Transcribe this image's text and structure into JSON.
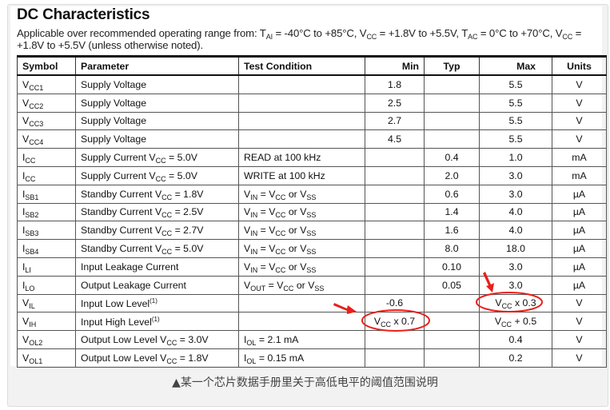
{
  "title": "DC Characteristics",
  "description": [
    {
      "t": "Applicable over recommended operating range from: T"
    },
    {
      "t": "AI",
      "s": 1
    },
    {
      "t": " = -40°C to +85°C, V"
    },
    {
      "t": "CC",
      "s": 1
    },
    {
      "t": " = +1.8V to +5.5V, T"
    },
    {
      "t": "AC",
      "s": 1
    },
    {
      "t": " = 0°C to +70°C, V"
    },
    {
      "t": "CC",
      "s": 1
    },
    {
      "t": " = +1.8V to +5.5V (unless otherwise noted)."
    }
  ],
  "headers": [
    "Symbol",
    "Parameter",
    "Test Condition",
    "Min",
    "Typ",
    "Max",
    "Units"
  ],
  "rows": [
    [
      [
        {
          "t": "V"
        },
        {
          "t": "CC1",
          "s": 1
        }
      ],
      [
        {
          "t": "Supply Voltage"
        }
      ],
      [],
      [
        {
          "t": "1.8"
        }
      ],
      [],
      [
        {
          "t": "5.5"
        }
      ],
      [
        {
          "t": "V"
        }
      ]
    ],
    [
      [
        {
          "t": "V"
        },
        {
          "t": "CC2",
          "s": 1
        }
      ],
      [
        {
          "t": "Supply Voltage"
        }
      ],
      [],
      [
        {
          "t": "2.5"
        }
      ],
      [],
      [
        {
          "t": "5.5"
        }
      ],
      [
        {
          "t": "V"
        }
      ]
    ],
    [
      [
        {
          "t": "V"
        },
        {
          "t": "CC3",
          "s": 1
        }
      ],
      [
        {
          "t": "Supply Voltage"
        }
      ],
      [],
      [
        {
          "t": "2.7"
        }
      ],
      [],
      [
        {
          "t": "5.5"
        }
      ],
      [
        {
          "t": "V"
        }
      ]
    ],
    [
      [
        {
          "t": "V"
        },
        {
          "t": "CC4",
          "s": 1
        }
      ],
      [
        {
          "t": "Supply Voltage"
        }
      ],
      [],
      [
        {
          "t": "4.5"
        }
      ],
      [],
      [
        {
          "t": "5.5"
        }
      ],
      [
        {
          "t": "V"
        }
      ]
    ],
    [
      [
        {
          "t": "I"
        },
        {
          "t": "CC",
          "s": 1
        }
      ],
      [
        {
          "t": "Supply Current V"
        },
        {
          "t": "CC",
          "s": 1
        },
        {
          "t": " = 5.0V"
        }
      ],
      [
        {
          "t": "READ at 100 kHz"
        }
      ],
      [],
      [
        {
          "t": "0.4"
        }
      ],
      [
        {
          "t": "1.0"
        }
      ],
      [
        {
          "t": "mA"
        }
      ]
    ],
    [
      [
        {
          "t": "I"
        },
        {
          "t": "CC",
          "s": 1
        }
      ],
      [
        {
          "t": "Supply Current V"
        },
        {
          "t": "CC",
          "s": 1
        },
        {
          "t": " = 5.0V"
        }
      ],
      [
        {
          "t": "WRITE at 100 kHz"
        }
      ],
      [],
      [
        {
          "t": "2.0"
        }
      ],
      [
        {
          "t": "3.0"
        }
      ],
      [
        {
          "t": "mA"
        }
      ]
    ],
    [
      [
        {
          "t": "I"
        },
        {
          "t": "SB1",
          "s": 1
        }
      ],
      [
        {
          "t": "Standby Current V"
        },
        {
          "t": "CC",
          "s": 1
        },
        {
          "t": " = 1.8V"
        }
      ],
      [
        {
          "t": "V"
        },
        {
          "t": "IN",
          "s": 1
        },
        {
          "t": " = V"
        },
        {
          "t": "CC",
          "s": 1
        },
        {
          "t": " or V"
        },
        {
          "t": "SS",
          "s": 1
        }
      ],
      [],
      [
        {
          "t": "0.6"
        }
      ],
      [
        {
          "t": "3.0"
        }
      ],
      [
        {
          "t": "µA"
        }
      ]
    ],
    [
      [
        {
          "t": "I"
        },
        {
          "t": "SB2",
          "s": 1
        }
      ],
      [
        {
          "t": "Standby Current V"
        },
        {
          "t": "CC",
          "s": 1
        },
        {
          "t": " = 2.5V"
        }
      ],
      [
        {
          "t": "V"
        },
        {
          "t": "IN",
          "s": 1
        },
        {
          "t": " = V"
        },
        {
          "t": "CC",
          "s": 1
        },
        {
          "t": " or V"
        },
        {
          "t": "SS",
          "s": 1
        }
      ],
      [],
      [
        {
          "t": "1.4"
        }
      ],
      [
        {
          "t": "4.0"
        }
      ],
      [
        {
          "t": "µA"
        }
      ]
    ],
    [
      [
        {
          "t": "I"
        },
        {
          "t": "SB3",
          "s": 1
        }
      ],
      [
        {
          "t": "Standby Current V"
        },
        {
          "t": "CC",
          "s": 1
        },
        {
          "t": " = 2.7V"
        }
      ],
      [
        {
          "t": "V"
        },
        {
          "t": "IN",
          "s": 1
        },
        {
          "t": " = V"
        },
        {
          "t": "CC",
          "s": 1
        },
        {
          "t": " or V"
        },
        {
          "t": "SS",
          "s": 1
        }
      ],
      [],
      [
        {
          "t": "1.6"
        }
      ],
      [
        {
          "t": "4.0"
        }
      ],
      [
        {
          "t": "µA"
        }
      ]
    ],
    [
      [
        {
          "t": "I"
        },
        {
          "t": "SB4",
          "s": 1
        }
      ],
      [
        {
          "t": "Standby Current V"
        },
        {
          "t": "CC",
          "s": 1
        },
        {
          "t": " = 5.0V"
        }
      ],
      [
        {
          "t": "V"
        },
        {
          "t": "IN",
          "s": 1
        },
        {
          "t": " = V"
        },
        {
          "t": "CC",
          "s": 1
        },
        {
          "t": " or V"
        },
        {
          "t": "SS",
          "s": 1
        }
      ],
      [],
      [
        {
          "t": "8.0"
        }
      ],
      [
        {
          "t": "18.0"
        }
      ],
      [
        {
          "t": "µA"
        }
      ]
    ],
    [
      [
        {
          "t": "I"
        },
        {
          "t": "LI",
          "s": 1
        }
      ],
      [
        {
          "t": "Input Leakage Current"
        }
      ],
      [
        {
          "t": "V"
        },
        {
          "t": "IN",
          "s": 1
        },
        {
          "t": " = V"
        },
        {
          "t": "CC",
          "s": 1
        },
        {
          "t": " or V"
        },
        {
          "t": "SS",
          "s": 1
        }
      ],
      [],
      [
        {
          "t": "0.10"
        }
      ],
      [
        {
          "t": "3.0"
        }
      ],
      [
        {
          "t": "µA"
        }
      ]
    ],
    [
      [
        {
          "t": "I"
        },
        {
          "t": "LO",
          "s": 1
        }
      ],
      [
        {
          "t": "Output Leakage Current"
        }
      ],
      [
        {
          "t": "V"
        },
        {
          "t": "OUT",
          "s": 1
        },
        {
          "t": " = V"
        },
        {
          "t": "CC",
          "s": 1
        },
        {
          "t": " or V"
        },
        {
          "t": "SS",
          "s": 1
        }
      ],
      [],
      [
        {
          "t": "0.05"
        }
      ],
      [
        {
          "t": "3.0"
        }
      ],
      [
        {
          "t": "µA"
        }
      ]
    ],
    [
      [
        {
          "t": "V"
        },
        {
          "t": "IL",
          "s": 1
        }
      ],
      [
        {
          "t": "Input Low Level"
        },
        {
          "t": "(1)",
          "p": 1
        }
      ],
      [],
      [
        {
          "t": "-0.6"
        }
      ],
      [],
      [
        {
          "t": "V"
        },
        {
          "t": "CC",
          "s": 1
        },
        {
          "t": " x 0.3"
        }
      ],
      [
        {
          "t": "V"
        }
      ]
    ],
    [
      [
        {
          "t": "V"
        },
        {
          "t": "IH",
          "s": 1
        }
      ],
      [
        {
          "t": "Input High Level"
        },
        {
          "t": "(1)",
          "p": 1
        }
      ],
      [],
      [
        {
          "t": "V"
        },
        {
          "t": "CC",
          "s": 1
        },
        {
          "t": " x 0.7"
        }
      ],
      [],
      [
        {
          "t": "V"
        },
        {
          "t": "CC",
          "s": 1
        },
        {
          "t": " + 0.5"
        }
      ],
      [
        {
          "t": "V"
        }
      ]
    ],
    [
      [
        {
          "t": "V"
        },
        {
          "t": "OL2",
          "s": 1
        }
      ],
      [
        {
          "t": "Output Low Level V"
        },
        {
          "t": "CC",
          "s": 1
        },
        {
          "t": " = 3.0V"
        }
      ],
      [
        {
          "t": "I"
        },
        {
          "t": "OL",
          "s": 1
        },
        {
          "t": " = 2.1 mA"
        }
      ],
      [],
      [],
      [
        {
          "t": "0.4"
        }
      ],
      [
        {
          "t": "V"
        }
      ]
    ],
    [
      [
        {
          "t": "V"
        },
        {
          "t": "OL1",
          "s": 1
        }
      ],
      [
        {
          "t": "Output Low Level V"
        },
        {
          "t": "CC",
          "s": 1
        },
        {
          "t": " = 1.8V"
        }
      ],
      [
        {
          "t": "I"
        },
        {
          "t": "OL",
          "s": 1
        },
        {
          "t": " = 0.15 mA"
        }
      ],
      [],
      [],
      [
        {
          "t": "0.2"
        }
      ],
      [
        {
          "t": "V"
        }
      ]
    ]
  ],
  "annotation_color": "#e8201a",
  "caption": "▲某一个芯片数据手册里关于高低电平的阈值范围说明"
}
